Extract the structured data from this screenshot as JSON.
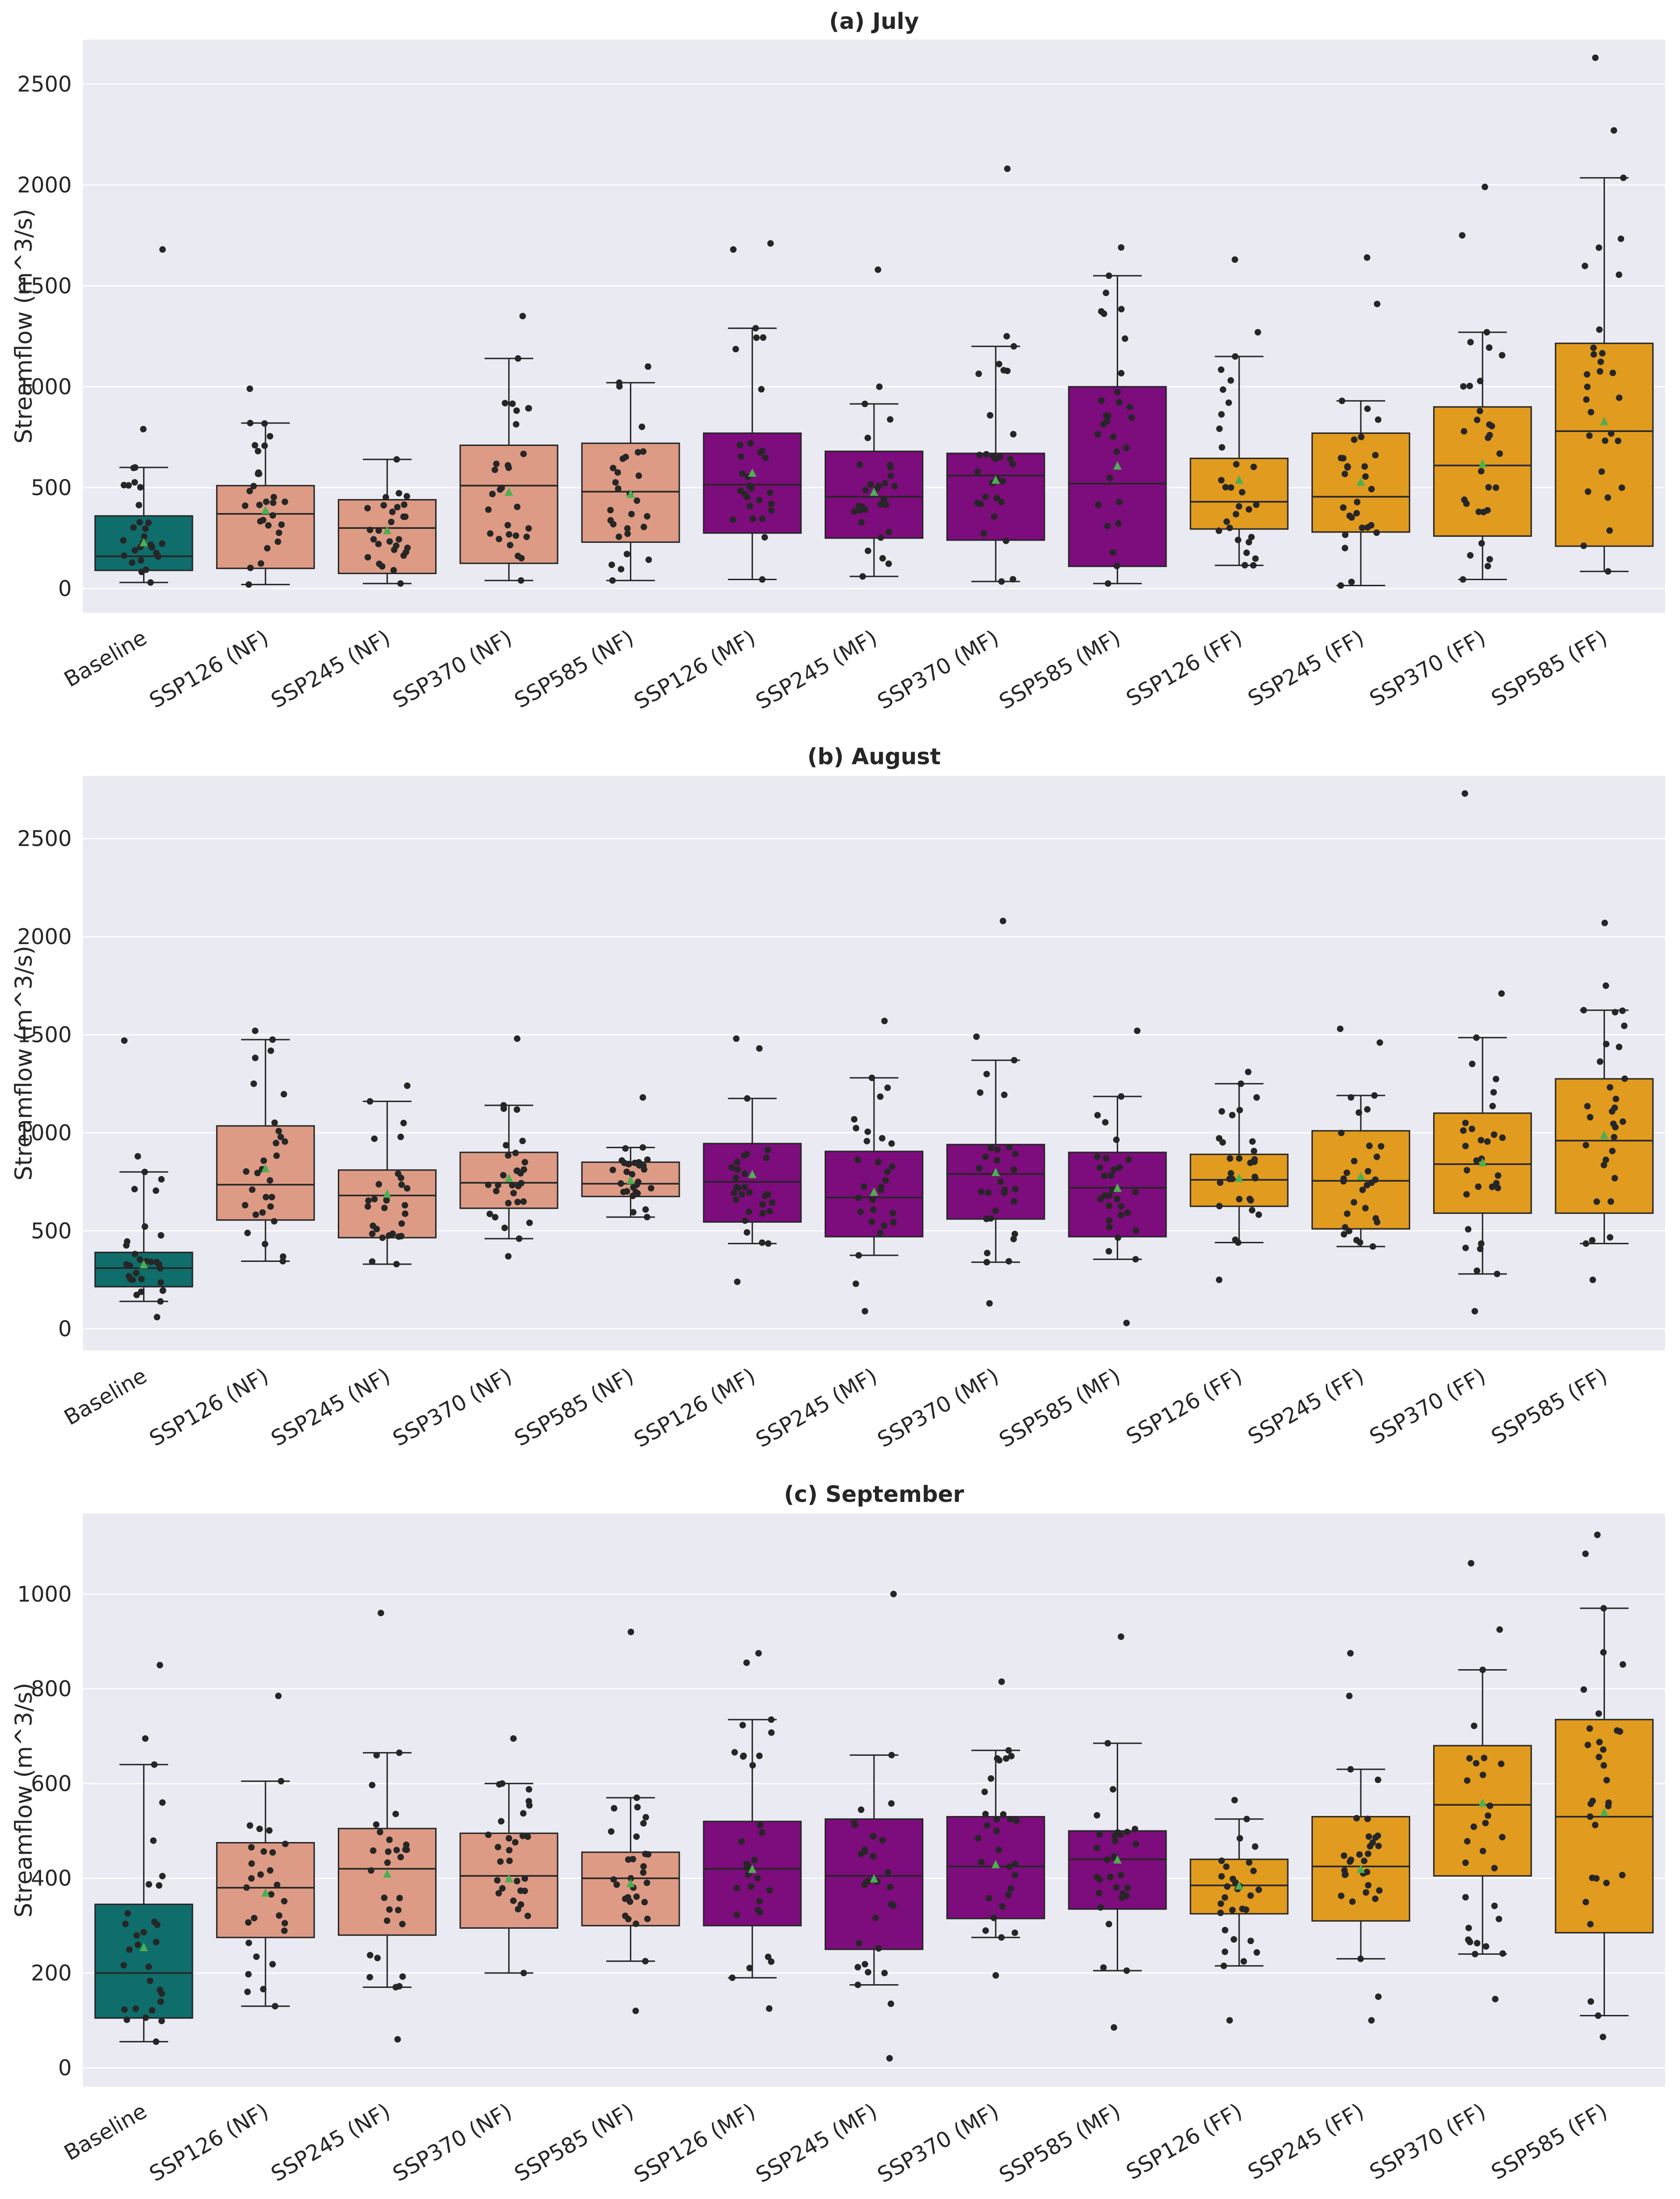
{
  "chart_data": [
    {
      "type": "box",
      "title": "(a) July",
      "xlabel": "",
      "ylabel": "Streamflow (m^3/s)",
      "ylim": [
        -120,
        2720
      ],
      "yticks": [
        0,
        500,
        1000,
        1500,
        2000,
        2500
      ],
      "grid": true,
      "categories": [
        "Baseline",
        "SSP126 (NF)",
        "SSP245 (NF)",
        "SSP370 (NF)",
        "SSP585 (NF)",
        "SSP126 (MF)",
        "SSP245 (MF)",
        "SSP370 (MF)",
        "SSP585 (MF)",
        "SSP126 (FF)",
        "SSP245 (FF)",
        "SSP370 (FF)",
        "SSP585 (FF)"
      ],
      "boxes": [
        {
          "q1": 90,
          "median": 160,
          "q3": 360,
          "whisker_low": 30,
          "whisker_high": 600,
          "mean": 230,
          "outliers": [
            790,
            1680
          ]
        },
        {
          "q1": 100,
          "median": 370,
          "q3": 510,
          "whisker_low": 20,
          "whisker_high": 820,
          "mean": 390,
          "outliers": [
            990
          ]
        },
        {
          "q1": 75,
          "median": 300,
          "q3": 440,
          "whisker_low": 25,
          "whisker_high": 640,
          "mean": 290,
          "outliers": []
        },
        {
          "q1": 125,
          "median": 510,
          "q3": 710,
          "whisker_low": 40,
          "whisker_high": 1140,
          "mean": 480,
          "outliers": [
            1350
          ]
        },
        {
          "q1": 230,
          "median": 480,
          "q3": 720,
          "whisker_low": 40,
          "whisker_high": 1020,
          "mean": 470,
          "outliers": [
            1100
          ]
        },
        {
          "q1": 275,
          "median": 515,
          "q3": 770,
          "whisker_low": 45,
          "whisker_high": 1290,
          "mean": 575,
          "outliers": [
            1680,
            1710
          ]
        },
        {
          "q1": 250,
          "median": 455,
          "q3": 680,
          "whisker_low": 60,
          "whisker_high": 915,
          "mean": 480,
          "outliers": [
            1000,
            1580
          ]
        },
        {
          "q1": 240,
          "median": 560,
          "q3": 670,
          "whisker_low": 35,
          "whisker_high": 1200,
          "mean": 540,
          "outliers": [
            1250,
            2080
          ]
        },
        {
          "q1": 110,
          "median": 520,
          "q3": 1000,
          "whisker_low": 25,
          "whisker_high": 1550,
          "mean": 610,
          "outliers": [
            1690
          ]
        },
        {
          "q1": 295,
          "median": 430,
          "q3": 645,
          "whisker_low": 115,
          "whisker_high": 1150,
          "mean": 540,
          "outliers": [
            1270,
            1630
          ]
        },
        {
          "q1": 280,
          "median": 455,
          "q3": 770,
          "whisker_low": 15,
          "whisker_high": 930,
          "mean": 530,
          "outliers": [
            1410,
            1640
          ]
        },
        {
          "q1": 260,
          "median": 610,
          "q3": 900,
          "whisker_low": 45,
          "whisker_high": 1270,
          "mean": 620,
          "outliers": [
            1750,
            1990
          ]
        },
        {
          "q1": 210,
          "median": 780,
          "q3": 1215,
          "whisker_low": 85,
          "whisker_high": 2035,
          "mean": 830,
          "outliers": [
            2270,
            2630
          ]
        }
      ]
    },
    {
      "type": "box",
      "title": "(b) August",
      "xlabel": "",
      "ylabel": "Streamflow (m^3/s)",
      "ylim": [
        -110,
        2820
      ],
      "yticks": [
        0,
        500,
        1000,
        1500,
        2000,
        2500
      ],
      "grid": true,
      "categories": [
        "Baseline",
        "SSP126 (NF)",
        "SSP245 (NF)",
        "SSP370 (NF)",
        "SSP585 (NF)",
        "SSP126 (MF)",
        "SSP245 (MF)",
        "SSP370 (MF)",
        "SSP585 (MF)",
        "SSP126 (FF)",
        "SSP245 (FF)",
        "SSP370 (FF)",
        "SSP585 (FF)"
      ],
      "boxes": [
        {
          "q1": 215,
          "median": 310,
          "q3": 390,
          "whisker_low": 140,
          "whisker_high": 800,
          "mean": 330,
          "outliers": [
            60,
            880,
            1470
          ]
        },
        {
          "q1": 555,
          "median": 735,
          "q3": 1035,
          "whisker_low": 345,
          "whisker_high": 1475,
          "mean": 820,
          "outliers": [
            1520
          ]
        },
        {
          "q1": 465,
          "median": 680,
          "q3": 810,
          "whisker_low": 330,
          "whisker_high": 1160,
          "mean": 690,
          "outliers": [
            1240
          ]
        },
        {
          "q1": 615,
          "median": 745,
          "q3": 900,
          "whisker_low": 460,
          "whisker_high": 1140,
          "mean": 770,
          "outliers": [
            370,
            1480
          ]
        },
        {
          "q1": 675,
          "median": 740,
          "q3": 850,
          "whisker_low": 570,
          "whisker_high": 925,
          "mean": 760,
          "outliers": [
            1180
          ]
        },
        {
          "q1": 545,
          "median": 750,
          "q3": 945,
          "whisker_low": 435,
          "whisker_high": 1175,
          "mean": 790,
          "outliers": [
            240,
            1430,
            1480
          ]
        },
        {
          "q1": 470,
          "median": 670,
          "q3": 905,
          "whisker_low": 375,
          "whisker_high": 1280,
          "mean": 700,
          "outliers": [
            90,
            230,
            1570
          ]
        },
        {
          "q1": 560,
          "median": 790,
          "q3": 940,
          "whisker_low": 340,
          "whisker_high": 1370,
          "mean": 800,
          "outliers": [
            130,
            1490,
            2080
          ]
        },
        {
          "q1": 470,
          "median": 720,
          "q3": 900,
          "whisker_low": 355,
          "whisker_high": 1185,
          "mean": 720,
          "outliers": [
            30,
            1520
          ]
        },
        {
          "q1": 625,
          "median": 760,
          "q3": 890,
          "whisker_low": 440,
          "whisker_high": 1250,
          "mean": 770,
          "outliers": [
            250,
            1310
          ]
        },
        {
          "q1": 510,
          "median": 755,
          "q3": 1010,
          "whisker_low": 420,
          "whisker_high": 1190,
          "mean": 780,
          "outliers": [
            1460,
            1530
          ]
        },
        {
          "q1": 590,
          "median": 840,
          "q3": 1100,
          "whisker_low": 280,
          "whisker_high": 1485,
          "mean": 850,
          "outliers": [
            90,
            1710,
            2730
          ]
        },
        {
          "q1": 590,
          "median": 960,
          "q3": 1275,
          "whisker_low": 435,
          "whisker_high": 1625,
          "mean": 990,
          "outliers": [
            250,
            1750,
            2070
          ]
        }
      ]
    },
    {
      "type": "box",
      "title": "(c) September",
      "xlabel": "",
      "ylabel": "Streamflow (m^3/s)",
      "ylim": [
        -40,
        1170
      ],
      "yticks": [
        0,
        200,
        400,
        600,
        800,
        1000
      ],
      "grid": true,
      "categories": [
        "Baseline",
        "SSP126 (NF)",
        "SSP245 (NF)",
        "SSP370 (NF)",
        "SSP585 (NF)",
        "SSP126 (MF)",
        "SSP245 (MF)",
        "SSP370 (MF)",
        "SSP585 (MF)",
        "SSP126 (FF)",
        "SSP245 (FF)",
        "SSP370 (FF)",
        "SSP585 (FF)"
      ],
      "boxes": [
        {
          "q1": 105,
          "median": 200,
          "q3": 345,
          "whisker_low": 55,
          "whisker_high": 640,
          "mean": 255,
          "outliers": [
            695,
            850
          ]
        },
        {
          "q1": 275,
          "median": 380,
          "q3": 475,
          "whisker_low": 130,
          "whisker_high": 605,
          "mean": 370,
          "outliers": [
            785
          ]
        },
        {
          "q1": 280,
          "median": 420,
          "q3": 505,
          "whisker_low": 170,
          "whisker_high": 665,
          "mean": 410,
          "outliers": [
            60,
            960
          ]
        },
        {
          "q1": 295,
          "median": 405,
          "q3": 495,
          "whisker_low": 200,
          "whisker_high": 600,
          "mean": 400,
          "outliers": [
            695
          ]
        },
        {
          "q1": 300,
          "median": 400,
          "q3": 455,
          "whisker_low": 225,
          "whisker_high": 570,
          "mean": 390,
          "outliers": [
            120,
            920
          ]
        },
        {
          "q1": 300,
          "median": 420,
          "q3": 520,
          "whisker_low": 190,
          "whisker_high": 735,
          "mean": 420,
          "outliers": [
            125,
            855,
            875
          ]
        },
        {
          "q1": 250,
          "median": 405,
          "q3": 525,
          "whisker_low": 175,
          "whisker_high": 660,
          "mean": 400,
          "outliers": [
            20,
            135,
            1000
          ]
        },
        {
          "q1": 315,
          "median": 425,
          "q3": 530,
          "whisker_low": 275,
          "whisker_high": 670,
          "mean": 430,
          "outliers": [
            195,
            815
          ]
        },
        {
          "q1": 335,
          "median": 440,
          "q3": 500,
          "whisker_low": 205,
          "whisker_high": 685,
          "mean": 440,
          "outliers": [
            85,
            910
          ]
        },
        {
          "q1": 325,
          "median": 385,
          "q3": 440,
          "whisker_low": 215,
          "whisker_high": 525,
          "mean": 385,
          "outliers": [
            100,
            565
          ]
        },
        {
          "q1": 310,
          "median": 425,
          "q3": 530,
          "whisker_low": 230,
          "whisker_high": 630,
          "mean": 420,
          "outliers": [
            100,
            150,
            785,
            875
          ]
        },
        {
          "q1": 405,
          "median": 555,
          "q3": 680,
          "whisker_low": 240,
          "whisker_high": 840,
          "mean": 560,
          "outliers": [
            145,
            925,
            1065
          ]
        },
        {
          "q1": 285,
          "median": 530,
          "q3": 735,
          "whisker_low": 110,
          "whisker_high": 970,
          "mean": 540,
          "outliers": [
            65,
            1085,
            1125
          ]
        }
      ]
    }
  ],
  "colors": {
    "Baseline": "#0f6d6b",
    "NF": "#dd9b85",
    "MF": "#7d0c7c",
    "FF": "#e19b1e",
    "plot_bg": "#eaeaf2",
    "grid": "#ffffff",
    "point": "#262626",
    "mean_marker": "#4caf50"
  }
}
